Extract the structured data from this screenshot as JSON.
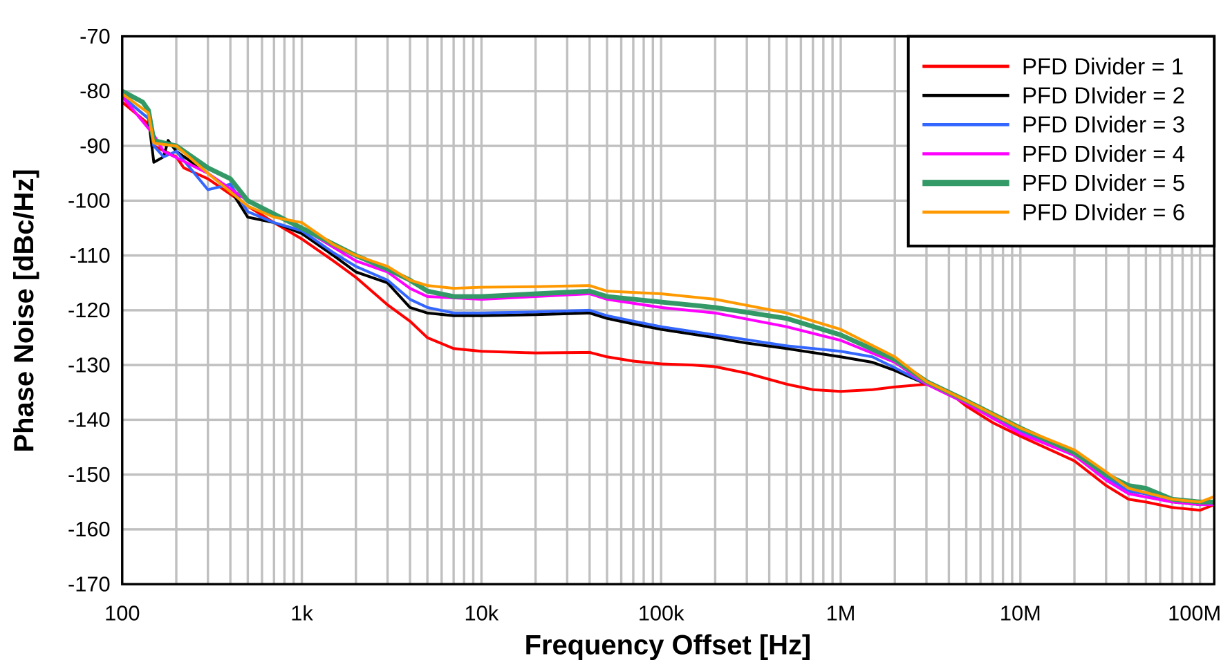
{
  "chart_data": {
    "type": "line",
    "title": "",
    "xlabel": "Frequency Offset [Hz]",
    "ylabel": "Phase Noise [dBc/Hz]",
    "xscale": "log",
    "xlim": [
      100,
      120000000
    ],
    "ylim": [
      -170,
      -70
    ],
    "grid": true,
    "legend_position": "top-right",
    "x_ticks": [
      100,
      1000,
      10000,
      100000,
      1000000,
      10000000,
      100000000
    ],
    "x_tick_labels": [
      "100",
      "1k",
      "10k",
      "100k",
      "1M",
      "10M",
      "100M"
    ],
    "y_ticks": [
      -70,
      -80,
      -90,
      -100,
      -110,
      -120,
      -130,
      -140,
      -150,
      -160,
      -170
    ],
    "y_tick_labels": [
      "-70",
      "-80",
      "-90",
      "-100",
      "-110",
      "-120",
      "-130",
      "-140",
      "-150",
      "-160",
      "-170"
    ],
    "series": [
      {
        "name": "PFD Divider = 1",
        "color": "#ff0000",
        "points": [
          [
            100,
            -82
          ],
          [
            140,
            -86
          ],
          [
            150,
            -90
          ],
          [
            200,
            -92
          ],
          [
            220,
            -94
          ],
          [
            300,
            -96
          ],
          [
            500,
            -101
          ],
          [
            700,
            -104
          ],
          [
            1000,
            -107
          ],
          [
            1500,
            -111
          ],
          [
            2000,
            -114
          ],
          [
            3000,
            -119
          ],
          [
            4000,
            -122
          ],
          [
            5000,
            -125
          ],
          [
            7000,
            -127
          ],
          [
            10000,
            -127.5
          ],
          [
            20000,
            -127.8
          ],
          [
            40000,
            -127.7
          ],
          [
            50000,
            -128.5
          ],
          [
            70000,
            -129.3
          ],
          [
            100000,
            -129.8
          ],
          [
            150000,
            -130
          ],
          [
            200000,
            -130.3
          ],
          [
            300000,
            -131.5
          ],
          [
            500000,
            -133.5
          ],
          [
            700000,
            -134.5
          ],
          [
            1000000,
            -134.8
          ],
          [
            1500000,
            -134.5
          ],
          [
            2000000,
            -134
          ],
          [
            3000000,
            -133.5
          ],
          [
            4000000,
            -135
          ],
          [
            5000000,
            -137.5
          ],
          [
            7000000,
            -140.5
          ],
          [
            10000000,
            -143
          ],
          [
            20000000,
            -147.5
          ],
          [
            30000000,
            -152
          ],
          [
            40000000,
            -154.5
          ],
          [
            50000000,
            -155
          ],
          [
            70000000,
            -156
          ],
          [
            100000000,
            -156.5
          ],
          [
            120000000,
            -155.5
          ]
        ]
      },
      {
        "name": "PFD DIvider = 2",
        "color": "#000000",
        "points": [
          [
            100,
            -81
          ],
          [
            140,
            -85
          ],
          [
            150,
            -93
          ],
          [
            170,
            -92
          ],
          [
            180,
            -89
          ],
          [
            200,
            -91
          ],
          [
            300,
            -95
          ],
          [
            400,
            -98
          ],
          [
            500,
            -103
          ],
          [
            700,
            -104
          ],
          [
            1000,
            -106
          ],
          [
            1500,
            -110
          ],
          [
            2000,
            -113
          ],
          [
            3000,
            -115
          ],
          [
            4000,
            -119.5
          ],
          [
            5000,
            -120.5
          ],
          [
            7000,
            -121
          ],
          [
            10000,
            -121
          ],
          [
            20000,
            -120.8
          ],
          [
            40000,
            -120.5
          ],
          [
            50000,
            -121.5
          ],
          [
            70000,
            -122.5
          ],
          [
            100000,
            -123.5
          ],
          [
            200000,
            -125
          ],
          [
            300000,
            -126
          ],
          [
            500000,
            -127
          ],
          [
            1000000,
            -128.5
          ],
          [
            1500000,
            -129.5
          ],
          [
            2000000,
            -131
          ],
          [
            3000000,
            -133.5
          ],
          [
            5000000,
            -136.5
          ],
          [
            7000000,
            -139.5
          ],
          [
            10000000,
            -142
          ],
          [
            20000000,
            -146.5
          ],
          [
            30000000,
            -150.5
          ],
          [
            40000000,
            -153
          ],
          [
            50000000,
            -153.5
          ],
          [
            70000000,
            -155
          ],
          [
            100000000,
            -155.5
          ],
          [
            120000000,
            -155
          ]
        ]
      },
      {
        "name": "PFD DIvider = 3",
        "color": "#3366ff",
        "points": [
          [
            100,
            -81
          ],
          [
            140,
            -85
          ],
          [
            150,
            -90
          ],
          [
            170,
            -92
          ],
          [
            200,
            -91
          ],
          [
            300,
            -98
          ],
          [
            400,
            -97
          ],
          [
            500,
            -102
          ],
          [
            700,
            -104
          ],
          [
            1000,
            -105.5
          ],
          [
            1500,
            -109.5
          ],
          [
            2000,
            -112
          ],
          [
            3000,
            -114.5
          ],
          [
            4000,
            -118
          ],
          [
            5000,
            -119.5
          ],
          [
            7000,
            -120.5
          ],
          [
            10000,
            -120.5
          ],
          [
            20000,
            -120.3
          ],
          [
            40000,
            -120
          ],
          [
            50000,
            -121
          ],
          [
            70000,
            -122
          ],
          [
            100000,
            -123
          ],
          [
            200000,
            -124.5
          ],
          [
            500000,
            -126.5
          ],
          [
            1000000,
            -127.5
          ],
          [
            1500000,
            -128.5
          ],
          [
            2000000,
            -130.5
          ],
          [
            3000000,
            -133.5
          ],
          [
            5000000,
            -136.5
          ],
          [
            7000000,
            -139.5
          ],
          [
            10000000,
            -142
          ],
          [
            20000000,
            -146.5
          ],
          [
            30000000,
            -150.5
          ],
          [
            40000000,
            -153
          ],
          [
            50000000,
            -153.5
          ],
          [
            70000000,
            -155
          ],
          [
            100000000,
            -155.5
          ],
          [
            120000000,
            -155
          ]
        ]
      },
      {
        "name": "PFD DIvider = 4",
        "color": "#ff00ff",
        "points": [
          [
            100,
            -81
          ],
          [
            150,
            -88
          ],
          [
            170,
            -91
          ],
          [
            300,
            -95
          ],
          [
            500,
            -100
          ],
          [
            1000,
            -105
          ],
          [
            2000,
            -111
          ],
          [
            3000,
            -113
          ],
          [
            4000,
            -116
          ],
          [
            5000,
            -117.5
          ],
          [
            10000,
            -118
          ],
          [
            20000,
            -117.5
          ],
          [
            40000,
            -117
          ],
          [
            50000,
            -118
          ],
          [
            100000,
            -119.5
          ],
          [
            200000,
            -120.5
          ],
          [
            500000,
            -123
          ],
          [
            1000000,
            -125.5
          ],
          [
            2000000,
            -129.5
          ],
          [
            3000000,
            -133.5
          ],
          [
            5000000,
            -137
          ],
          [
            10000000,
            -142.5
          ],
          [
            20000000,
            -146.5
          ],
          [
            30000000,
            -151
          ],
          [
            40000000,
            -153.5
          ],
          [
            70000000,
            -155
          ],
          [
            100000000,
            -155.5
          ],
          [
            120000000,
            -155.5
          ]
        ]
      },
      {
        "name": "PFD DIvider = 5",
        "color": "#339966",
        "points": [
          [
            100,
            -80
          ],
          [
            130,
            -82
          ],
          [
            140,
            -83.5
          ],
          [
            150,
            -89
          ],
          [
            200,
            -90
          ],
          [
            300,
            -94
          ],
          [
            400,
            -96
          ],
          [
            500,
            -100
          ],
          [
            1000,
            -105
          ],
          [
            2000,
            -110
          ],
          [
            3000,
            -112.5
          ],
          [
            4000,
            -114.5
          ],
          [
            5000,
            -116.5
          ],
          [
            7000,
            -117.5
          ],
          [
            10000,
            -117.5
          ],
          [
            20000,
            -117
          ],
          [
            40000,
            -116.5
          ],
          [
            50000,
            -117.5
          ],
          [
            100000,
            -118.5
          ],
          [
            200000,
            -119.5
          ],
          [
            500000,
            -121.5
          ],
          [
            1000000,
            -124.5
          ],
          [
            2000000,
            -129
          ],
          [
            3000000,
            -133
          ],
          [
            5000000,
            -136.5
          ],
          [
            10000000,
            -141.5
          ],
          [
            20000000,
            -146
          ],
          [
            30000000,
            -150
          ],
          [
            40000000,
            -152
          ],
          [
            50000000,
            -152.5
          ],
          [
            70000000,
            -154.5
          ],
          [
            100000000,
            -155
          ],
          [
            120000000,
            -155
          ]
        ]
      },
      {
        "name": "PFD DIvider = 6",
        "color": "#ff9900",
        "points": [
          [
            100,
            -80.5
          ],
          [
            140,
            -84
          ],
          [
            150,
            -89.5
          ],
          [
            200,
            -90
          ],
          [
            300,
            -95
          ],
          [
            500,
            -101
          ],
          [
            700,
            -103
          ],
          [
            1000,
            -104
          ],
          [
            1500,
            -108
          ],
          [
            2000,
            -110
          ],
          [
            3000,
            -112
          ],
          [
            4000,
            -114.5
          ],
          [
            5000,
            -115.5
          ],
          [
            7000,
            -116
          ],
          [
            10000,
            -115.8
          ],
          [
            20000,
            -115.7
          ],
          [
            40000,
            -115.5
          ],
          [
            50000,
            -116.5
          ],
          [
            100000,
            -117
          ],
          [
            200000,
            -118
          ],
          [
            500000,
            -120.5
          ],
          [
            1000000,
            -123.5
          ],
          [
            2000000,
            -128.5
          ],
          [
            3000000,
            -133
          ],
          [
            5000000,
            -136.5
          ],
          [
            10000000,
            -141.5
          ],
          [
            20000000,
            -145.5
          ],
          [
            30000000,
            -149.5
          ],
          [
            40000000,
            -152.5
          ],
          [
            70000000,
            -154.5
          ],
          [
            100000000,
            -155
          ],
          [
            120000000,
            -154
          ]
        ]
      }
    ]
  }
}
